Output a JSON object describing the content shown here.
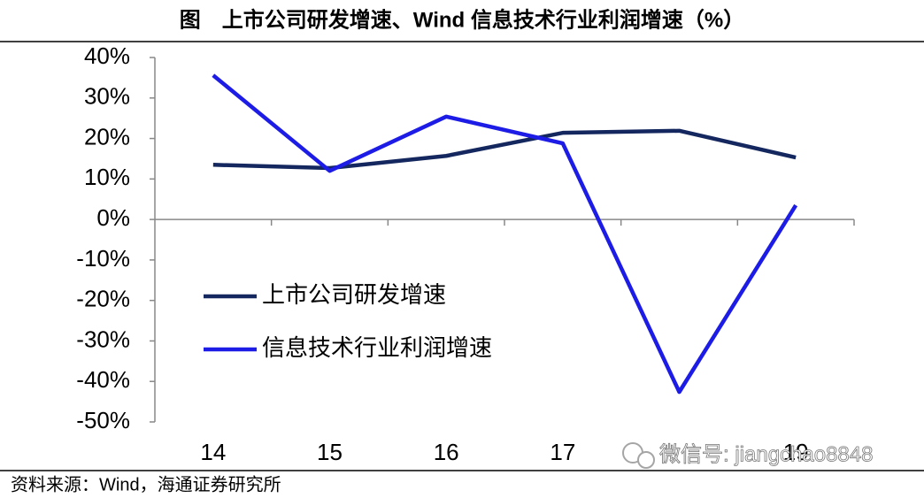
{
  "chart_data": {
    "type": "line",
    "title": "图　上市公司研发增速、Wind 信息技术行业利润增速（%）",
    "categories": [
      "14",
      "15",
      "16",
      "17",
      null,
      "19"
    ],
    "series": [
      {
        "name": "上市公司研发增速",
        "color": "#14275e",
        "values": [
          13.5,
          12.7,
          15.7,
          21.4,
          21.9,
          15.3
        ]
      },
      {
        "name": "信息技术行业利润增速",
        "color": "#1c1ce6",
        "values": [
          35.6,
          12.0,
          25.4,
          18.8,
          -42.6,
          3.5
        ]
      }
    ],
    "ylim": [
      -50,
      40
    ],
    "yticks": [
      {
        "value": -50,
        "label": "-50%"
      },
      {
        "value": -40,
        "label": "-40%"
      },
      {
        "value": -30,
        "label": "-30%"
      },
      {
        "value": -20,
        "label": "-20%"
      },
      {
        "value": -10,
        "label": "-10%"
      },
      {
        "value": 0,
        "label": "0%"
      },
      {
        "value": 10,
        "label": "10%"
      },
      {
        "value": 20,
        "label": "20%"
      },
      {
        "value": 30,
        "label": "30%"
      },
      {
        "value": 40,
        "label": "40%"
      }
    ],
    "grid": false,
    "source": "资料来源：Wind，海通证券研究所",
    "watermark": "微信号: jiangchao8848"
  }
}
